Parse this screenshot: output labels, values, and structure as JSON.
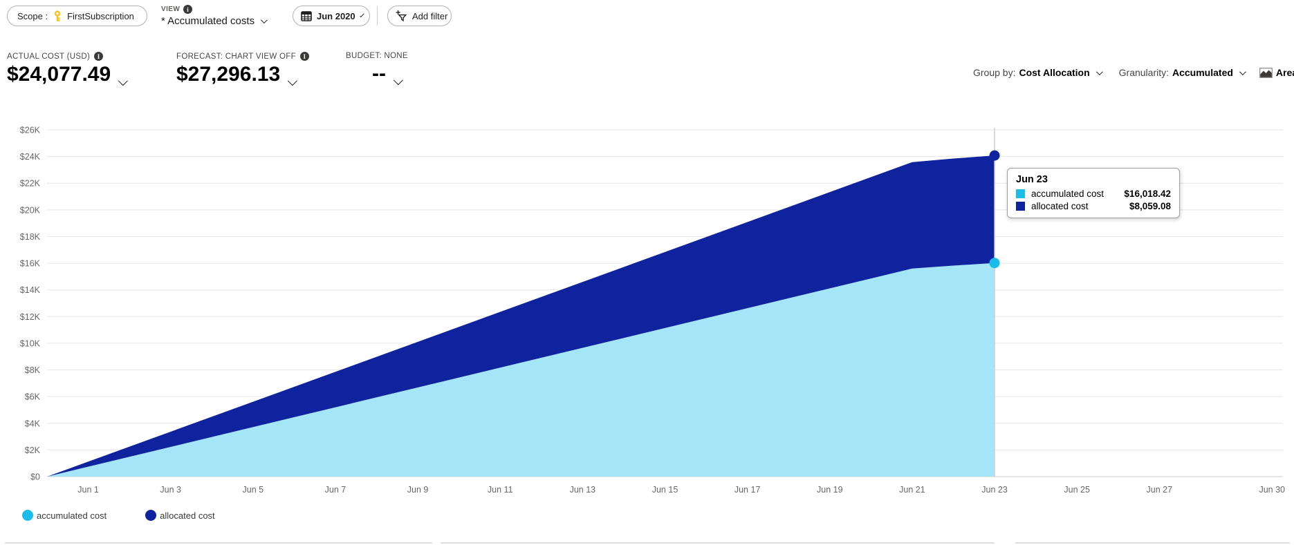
{
  "toolbar": {
    "scope": {
      "label": "Scope :",
      "value": "FirstSubscription"
    },
    "view": {
      "label": "VIEW",
      "value": "* Accumulated costs"
    },
    "date_range": "Jun 2020",
    "add_filter": "Add filter"
  },
  "summary": {
    "actual": {
      "label": "ACTUAL COST (USD)",
      "value": "$24,077.49"
    },
    "forecast": {
      "label": "FORECAST: CHART VIEW OFF",
      "value": "$27,296.13"
    },
    "budget": {
      "label": "BUDGET: NONE",
      "value": "--"
    }
  },
  "controls": {
    "group_by": {
      "label": "Group by:",
      "value": "Cost Allocation"
    },
    "granularity": {
      "label": "Granularity:",
      "value": "Accumulated"
    },
    "chart_type": {
      "value": "Area"
    }
  },
  "tooltip": {
    "title": "Jun 23",
    "rows": [
      {
        "label": "accumulated cost",
        "value": "$16,018.42",
        "color": "#1abcea"
      },
      {
        "label": "allocated cost",
        "value": "$8,059.08",
        "color": "#10239e"
      }
    ]
  },
  "chart_data": {
    "type": "area",
    "stacked": true,
    "x_domain": [
      0,
      30
    ],
    "ylim": [
      0,
      26000
    ],
    "grid": true,
    "legend_position": "bottom-left",
    "x_tick_days": [
      1,
      3,
      5,
      7,
      9,
      11,
      13,
      15,
      17,
      19,
      21,
      23,
      25,
      27,
      30
    ],
    "x_tick_labels": [
      "Jun 1",
      "Jun 3",
      "Jun 5",
      "Jun 7",
      "Jun 9",
      "Jun 11",
      "Jun 13",
      "Jun 15",
      "Jun 17",
      "Jun 19",
      "Jun 21",
      "Jun 23",
      "Jun 25",
      "Jun 27",
      "Jun 30"
    ],
    "y_ticks": [
      0,
      2000,
      4000,
      6000,
      8000,
      10000,
      12000,
      14000,
      16000,
      18000,
      20000,
      22000,
      24000,
      26000
    ],
    "y_tick_labels": [
      "$0",
      "$2K",
      "$4K",
      "$6K",
      "$8K",
      "$10K",
      "$12K",
      "$14K",
      "$16K",
      "$18K",
      "$20K",
      "$22K",
      "$24K",
      "$26K"
    ],
    "series": [
      {
        "name": "accumulated cost",
        "marker_color": "#1abcea",
        "fill_color": "#a5e5f8",
        "points": [
          {
            "day": 0,
            "value": 0
          },
          {
            "day": 21,
            "value": 15600
          },
          {
            "day": 22,
            "value": 15820
          },
          {
            "day": 23,
            "value": 16018.42
          }
        ]
      },
      {
        "name": "allocated cost",
        "marker_color": "#10239e",
        "fill_color": "#10239e",
        "points": [
          {
            "day": 0,
            "value": 0
          },
          {
            "day": 21,
            "value": 7980
          },
          {
            "day": 22,
            "value": 8030
          },
          {
            "day": 23,
            "value": 8059.08
          }
        ]
      }
    ],
    "hover_day": 23,
    "hover_label": "Jun 23",
    "colors": {
      "grid": "#e6e6e6",
      "baseline": "#cfcfcf",
      "hover_line": "#cccccc",
      "axis_text": "#666666"
    }
  }
}
